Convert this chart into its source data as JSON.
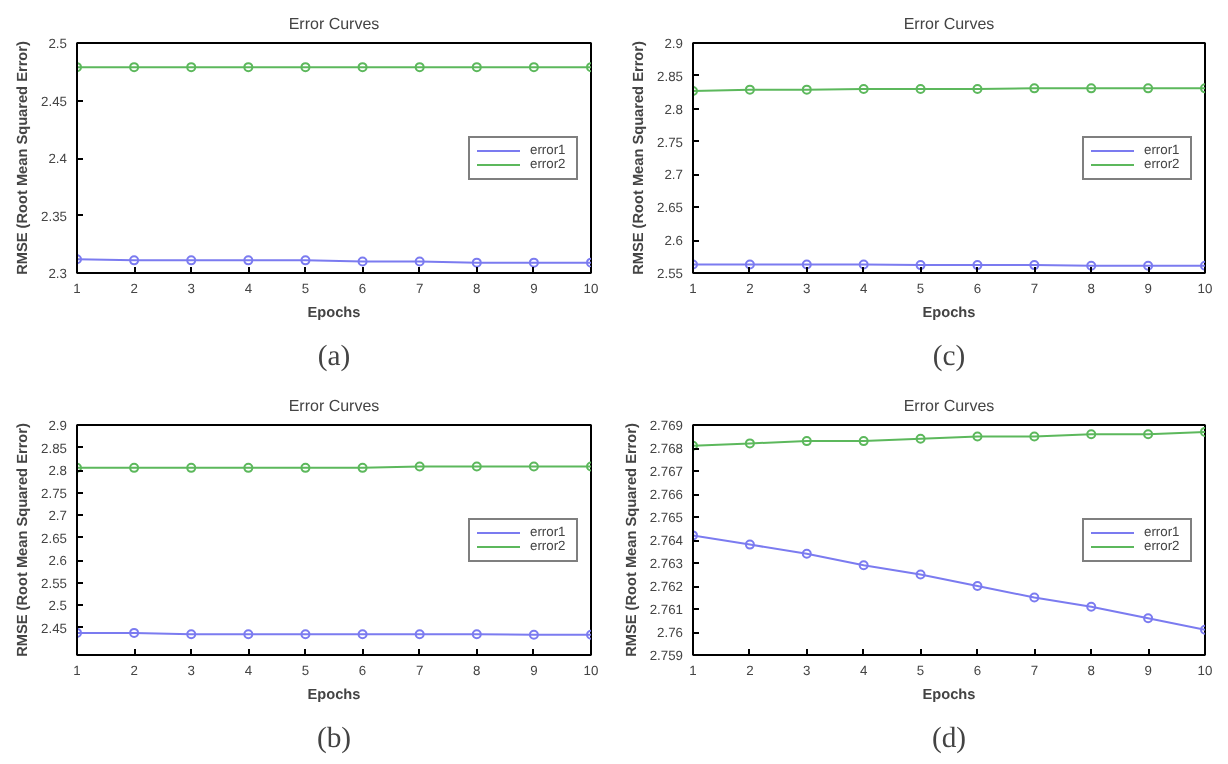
{
  "chart_data": [
    {
      "type": "line",
      "title": "Error Curves",
      "xlabel": "Epochs",
      "ylabel": "RMSE (Root Mean Squared Error)",
      "annotations": [
        "(a)"
      ],
      "x": [
        1,
        2,
        3,
        4,
        5,
        6,
        7,
        8,
        9,
        10
      ],
      "xlim": [
        1,
        10
      ],
      "xticks": [
        1,
        2,
        3,
        4,
        5,
        6,
        7,
        8,
        9,
        10
      ],
      "ylim": [
        2.3,
        2.5
      ],
      "yticks": [
        2.3,
        2.35,
        2.4,
        2.45,
        2.5
      ],
      "marker": "circle",
      "legend": "right",
      "series": [
        {
          "name": "error1",
          "color": "#7b7bf0",
          "values": [
            2.312,
            2.311,
            2.311,
            2.311,
            2.311,
            2.31,
            2.31,
            2.309,
            2.309,
            2.309
          ]
        },
        {
          "name": "error2",
          "color": "#5cb85c",
          "values": [
            2.479,
            2.479,
            2.479,
            2.479,
            2.479,
            2.479,
            2.479,
            2.479,
            2.479,
            2.479
          ]
        }
      ]
    },
    {
      "type": "line",
      "title": "Error Curves",
      "xlabel": "Epochs",
      "ylabel": "RMSE (Root Mean Squared Error)",
      "annotations": [
        "(c)"
      ],
      "x": [
        1,
        2,
        3,
        4,
        5,
        6,
        7,
        8,
        9,
        10
      ],
      "xlim": [
        1,
        10
      ],
      "xticks": [
        1,
        2,
        3,
        4,
        5,
        6,
        7,
        8,
        9,
        10
      ],
      "ylim": [
        2.55,
        2.9
      ],
      "yticks": [
        2.55,
        2.6,
        2.65,
        2.7,
        2.75,
        2.8,
        2.85,
        2.9
      ],
      "marker": "circle",
      "legend": "right",
      "series": [
        {
          "name": "error1",
          "color": "#7b7bf0",
          "values": [
            2.563,
            2.563,
            2.563,
            2.563,
            2.562,
            2.562,
            2.562,
            2.561,
            2.561,
            2.561
          ]
        },
        {
          "name": "error2",
          "color": "#5cb85c",
          "values": [
            2.827,
            2.829,
            2.829,
            2.83,
            2.83,
            2.83,
            2.831,
            2.831,
            2.831,
            2.831
          ]
        }
      ]
    },
    {
      "type": "line",
      "title": "Error Curves",
      "xlabel": "Epochs",
      "ylabel": "RMSE (Root Mean Squared Error)",
      "annotations": [
        "(b)"
      ],
      "x": [
        1,
        2,
        3,
        4,
        5,
        6,
        7,
        8,
        9,
        10
      ],
      "xlim": [
        1,
        10
      ],
      "xticks": [
        1,
        2,
        3,
        4,
        5,
        6,
        7,
        8,
        9,
        10
      ],
      "ylim": [
        2.39,
        2.9
      ],
      "yticks": [
        2.45,
        2.5,
        2.55,
        2.6,
        2.65,
        2.7,
        2.75,
        2.8,
        2.85,
        2.9
      ],
      "marker": "circle",
      "legend": "right",
      "series": [
        {
          "name": "error1",
          "color": "#7b7bf0",
          "values": [
            2.439,
            2.439,
            2.436,
            2.436,
            2.436,
            2.436,
            2.436,
            2.436,
            2.435,
            2.435
          ]
        },
        {
          "name": "error2",
          "color": "#5cb85c",
          "values": [
            2.805,
            2.805,
            2.805,
            2.805,
            2.805,
            2.805,
            2.808,
            2.808,
            2.808,
            2.808
          ]
        }
      ]
    },
    {
      "type": "line",
      "title": "Error Curves",
      "xlabel": "Epochs",
      "ylabel": "RMSE (Root Mean Squared Error)",
      "annotations": [
        "(d)"
      ],
      "x": [
        1,
        2,
        3,
        4,
        5,
        6,
        7,
        8,
        9,
        10
      ],
      "xlim": [
        1,
        10
      ],
      "xticks": [
        1,
        2,
        3,
        4,
        5,
        6,
        7,
        8,
        9,
        10
      ],
      "ylim": [
        2.759,
        2.769
      ],
      "yticks": [
        2.759,
        2.76,
        2.761,
        2.762,
        2.763,
        2.764,
        2.765,
        2.766,
        2.767,
        2.768,
        2.769
      ],
      "marker": "circle",
      "legend": "right",
      "series": [
        {
          "name": "error1",
          "color": "#7b7bf0",
          "values": [
            2.7642,
            2.7638,
            2.7634,
            2.7629,
            2.7625,
            2.762,
            2.7615,
            2.7611,
            2.7606,
            2.7601
          ]
        },
        {
          "name": "error2",
          "color": "#5cb85c",
          "values": [
            2.7681,
            2.7682,
            2.7683,
            2.7683,
            2.7684,
            2.7685,
            2.7685,
            2.7686,
            2.7686,
            2.7687
          ]
        }
      ]
    }
  ]
}
